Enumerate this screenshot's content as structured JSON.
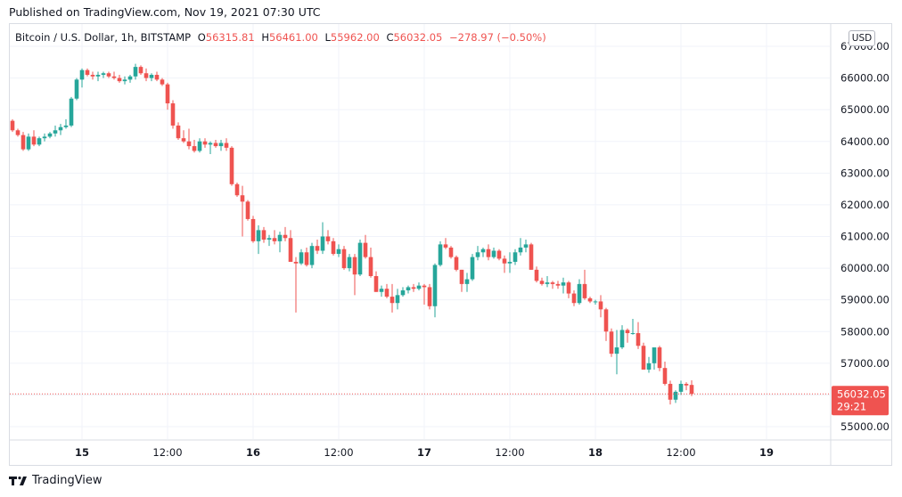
{
  "header": {
    "published": "Published on TradingView.com, Nov 19, 2021 07:30 UTC"
  },
  "legend": {
    "symbol": "Bitcoin / U.S. Dollar, 1h, BITSTAMP",
    "open_key": "O",
    "open": "56315.81",
    "high_key": "H",
    "high": "56461.00",
    "low_key": "L",
    "low": "55962.00",
    "close_key": "C",
    "close": "56032.05",
    "change": "−278.97 (−0.50%)"
  },
  "currency_badge": "USD",
  "price_tag": {
    "price": "56032.05",
    "countdown": "29:21"
  },
  "footer": {
    "brand": "TradingView"
  },
  "colors": {
    "up": "#26a69a",
    "down": "#ef5350",
    "grid": "#f0f3fa",
    "text": "#131722"
  },
  "chart_data": {
    "type": "candlestick",
    "title": "",
    "interval": "1h",
    "ylim": [
      54500,
      67300
    ],
    "y_ticks": [
      "55000.00",
      "56000.00",
      "57000.00",
      "58000.00",
      "59000.00",
      "60000.00",
      "61000.00",
      "62000.00",
      "63000.00",
      "64000.00",
      "65000.00",
      "66000.00",
      "67000.00"
    ],
    "x_ticks": [
      {
        "label": "15",
        "bold": true,
        "candle": 13
      },
      {
        "label": "12:00",
        "bold": false,
        "candle": 29
      },
      {
        "label": "16",
        "bold": true,
        "candle": 45
      },
      {
        "label": "12:00",
        "bold": false,
        "candle": 61
      },
      {
        "label": "17",
        "bold": true,
        "candle": 77
      },
      {
        "label": "12:00",
        "bold": false,
        "candle": 93
      },
      {
        "label": "18",
        "bold": true,
        "candle": 109
      },
      {
        "label": "12:00",
        "bold": false,
        "candle": 125
      },
      {
        "label": "19",
        "bold": true,
        "candle": 141
      }
    ],
    "last_price": 56032.05,
    "grid": true,
    "candles": [
      [
        64650,
        64700,
        64300,
        64350
      ],
      [
        64350,
        64400,
        64150,
        64200
      ],
      [
        64200,
        64300,
        63700,
        63750
      ],
      [
        63750,
        64250,
        63700,
        64150
      ],
      [
        64150,
        64350,
        63850,
        63900
      ],
      [
        63900,
        64150,
        63850,
        64100
      ],
      [
        64100,
        64250,
        64000,
        64150
      ],
      [
        64150,
        64300,
        64100,
        64250
      ],
      [
        64250,
        64500,
        64150,
        64350
      ],
      [
        64350,
        64550,
        64200,
        64450
      ],
      [
        64450,
        64700,
        64400,
        64500
      ],
      [
        64500,
        65400,
        64450,
        65350
      ],
      [
        65350,
        66000,
        65300,
        65950
      ],
      [
        65950,
        66300,
        65700,
        66250
      ],
      [
        66250,
        66300,
        66050,
        66100
      ],
      [
        66100,
        66200,
        65950,
        66050
      ],
      [
        66050,
        66200,
        65900,
        66100
      ],
      [
        66100,
        66200,
        66000,
        66150
      ],
      [
        66150,
        66200,
        66000,
        66050
      ],
      [
        66050,
        66200,
        65950,
        66000
      ],
      [
        66000,
        66100,
        65850,
        65900
      ],
      [
        65900,
        66050,
        65800,
        65950
      ],
      [
        65950,
        66100,
        65850,
        66050
      ],
      [
        66050,
        66450,
        65950,
        66350
      ],
      [
        66350,
        66400,
        66100,
        66150
      ],
      [
        66150,
        66300,
        65900,
        66000
      ],
      [
        66000,
        66150,
        65900,
        66100
      ],
      [
        66100,
        66200,
        65900,
        65950
      ],
      [
        65950,
        66000,
        65750,
        65800
      ],
      [
        65800,
        65850,
        65000,
        65200
      ],
      [
        65200,
        65300,
        64400,
        64500
      ],
      [
        64500,
        64600,
        64050,
        64100
      ],
      [
        64100,
        64350,
        63950,
        64000
      ],
      [
        64000,
        64400,
        63750,
        63850
      ],
      [
        63850,
        64050,
        63650,
        63700
      ],
      [
        63700,
        64100,
        63650,
        64000
      ],
      [
        64000,
        64100,
        63800,
        63900
      ],
      [
        63900,
        64000,
        63600,
        63950
      ],
      [
        63950,
        64050,
        63800,
        63850
      ],
      [
        63850,
        64050,
        63700,
        63950
      ],
      [
        63950,
        64100,
        63700,
        63800
      ],
      [
        63800,
        63850,
        62600,
        62650
      ],
      [
        62650,
        62700,
        62250,
        62300
      ],
      [
        62300,
        62600,
        61000,
        62100
      ],
      [
        62100,
        62150,
        61500,
        61550
      ],
      [
        61550,
        61650,
        60800,
        60850
      ],
      [
        60850,
        61350,
        60450,
        61200
      ],
      [
        61200,
        61300,
        60800,
        60900
      ],
      [
        60900,
        61050,
        60700,
        60950
      ],
      [
        60950,
        61200,
        60750,
        60850
      ],
      [
        60850,
        61150,
        60500,
        61050
      ],
      [
        61050,
        61300,
        60850,
        60950
      ],
      [
        60950,
        61200,
        60200,
        60200
      ],
      [
        60200,
        60350,
        58600,
        60150
      ],
      [
        60150,
        60600,
        60100,
        60500
      ],
      [
        60500,
        60650,
        60050,
        60100
      ],
      [
        60100,
        60800,
        60000,
        60700
      ],
      [
        60700,
        60900,
        60450,
        60550
      ],
      [
        60550,
        61450,
        60450,
        61000
      ],
      [
        61000,
        61200,
        60750,
        60850
      ],
      [
        60850,
        60950,
        60400,
        60450
      ],
      [
        60450,
        60750,
        60350,
        60600
      ],
      [
        60600,
        60700,
        59950,
        60000
      ],
      [
        60000,
        60450,
        59900,
        60350
      ],
      [
        60350,
        60450,
        59150,
        59800
      ],
      [
        59800,
        60900,
        59750,
        60800
      ],
      [
        60800,
        61050,
        60300,
        60350
      ],
      [
        60350,
        60650,
        59700,
        59750
      ],
      [
        59750,
        59900,
        59250,
        59250
      ],
      [
        59250,
        59450,
        59100,
        59350
      ],
      [
        59350,
        59500,
        59050,
        59100
      ],
      [
        59100,
        59500,
        58600,
        58900
      ],
      [
        58900,
        59350,
        58700,
        59150
      ],
      [
        59150,
        59400,
        59100,
        59300
      ],
      [
        59300,
        59450,
        59200,
        59400
      ],
      [
        59400,
        59500,
        59250,
        59350
      ],
      [
        59350,
        59550,
        59300,
        59450
      ],
      [
        59450,
        59500,
        58850,
        59400
      ],
      [
        59400,
        59500,
        58700,
        58800
      ],
      [
        58800,
        60150,
        58450,
        60100
      ],
      [
        60100,
        60850,
        60050,
        60750
      ],
      [
        60750,
        60950,
        60600,
        60650
      ],
      [
        60650,
        60700,
        60300,
        60350
      ],
      [
        60350,
        60400,
        59900,
        59950
      ],
      [
        59950,
        59950,
        59250,
        59500
      ],
      [
        59500,
        59850,
        59250,
        59650
      ],
      [
        59650,
        60450,
        59600,
        60350
      ],
      [
        60350,
        60700,
        60250,
        60500
      ],
      [
        60500,
        60650,
        60350,
        60600
      ],
      [
        60600,
        60750,
        60250,
        60350
      ],
      [
        60350,
        60650,
        60300,
        60550
      ],
      [
        60550,
        60600,
        60250,
        60300
      ],
      [
        60300,
        60400,
        59850,
        60150
      ],
      [
        60150,
        60500,
        59850,
        60200
      ],
      [
        60200,
        60600,
        60100,
        60500
      ],
      [
        60500,
        60950,
        60400,
        60650
      ],
      [
        60650,
        60900,
        60500,
        60750
      ],
      [
        60750,
        60800,
        59950,
        59950
      ],
      [
        59950,
        60050,
        59550,
        59600
      ],
      [
        59600,
        59700,
        59450,
        59500
      ],
      [
        59500,
        59750,
        59400,
        59550
      ],
      [
        59550,
        59600,
        59350,
        59500
      ],
      [
        59500,
        59600,
        59350,
        59450
      ],
      [
        59450,
        59700,
        59200,
        59550
      ],
      [
        59550,
        59600,
        59050,
        59200
      ],
      [
        59200,
        59300,
        58800,
        58900
      ],
      [
        58900,
        59650,
        58850,
        59500
      ],
      [
        59500,
        59950,
        59000,
        59050
      ],
      [
        59050,
        59100,
        58900,
        58950
      ],
      [
        58950,
        59000,
        58850,
        58950
      ],
      [
        58950,
        59150,
        58450,
        58700
      ],
      [
        58700,
        58750,
        57700,
        58000
      ],
      [
        58000,
        58100,
        57200,
        57300
      ],
      [
        57300,
        58050,
        56650,
        57500
      ],
      [
        57500,
        58200,
        57450,
        58050
      ],
      [
        58050,
        58100,
        57650,
        57950
      ],
      [
        57950,
        58400,
        57900,
        57950
      ],
      [
        57950,
        58300,
        57450,
        57550
      ],
      [
        57550,
        57650,
        56800,
        56800
      ],
      [
        56800,
        57200,
        56700,
        57000
      ],
      [
        57000,
        57400,
        56800,
        57500
      ],
      [
        57500,
        57550,
        56750,
        56850
      ],
      [
        56850,
        57050,
        56300,
        56350
      ],
      [
        56350,
        56450,
        55700,
        55850
      ],
      [
        55850,
        56150,
        55750,
        56100
      ],
      [
        56100,
        56450,
        56000,
        56350
      ],
      [
        56350,
        56400,
        56150,
        56300
      ],
      [
        56315.81,
        56461,
        55962,
        56032.05
      ]
    ]
  }
}
